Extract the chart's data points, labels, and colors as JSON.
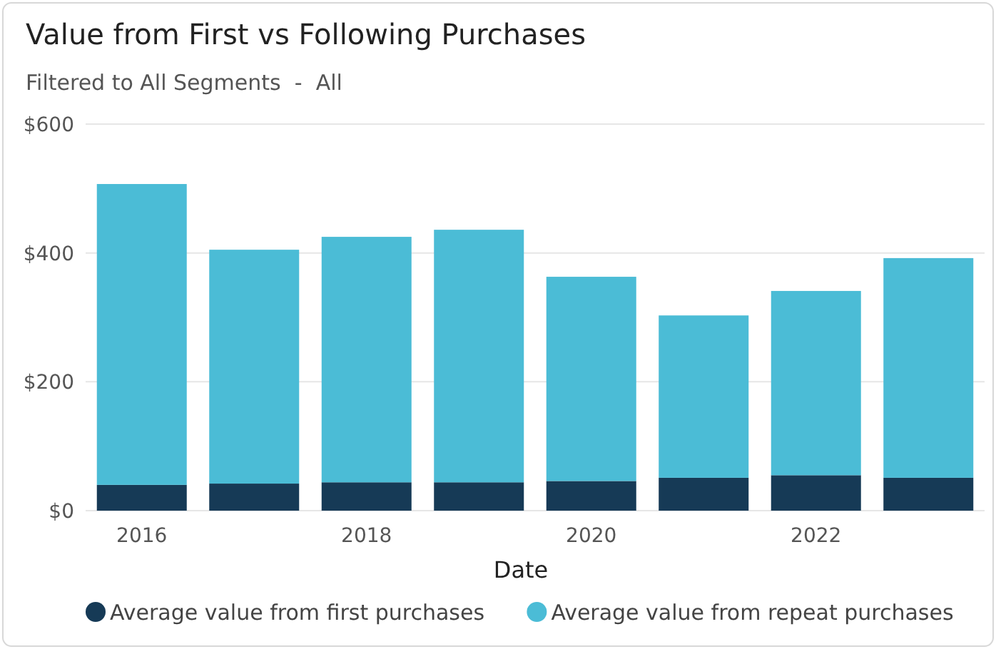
{
  "chart_data": {
    "type": "bar",
    "title": "Value from First vs Following Purchases",
    "subtitle": "Filtered to All Segments  -  All",
    "xlabel": "Date",
    "categories": [
      "2016",
      null,
      "2018",
      null,
      "2020",
      null,
      "2022",
      null
    ],
    "series": [
      {
        "name": "Average value from first purchases",
        "color": "#163a56",
        "values": [
          40,
          42,
          44,
          44,
          46,
          51,
          55,
          51
        ]
      },
      {
        "name": "Average value from repeat purchases",
        "color": "#4bbcd6",
        "values": [
          467,
          363,
          381,
          392,
          317,
          252,
          286,
          341
        ]
      }
    ],
    "stacked": true,
    "ylim": [
      0,
      600
    ],
    "yticks": [
      {
        "value": 0,
        "label": "$0"
      },
      {
        "value": 200,
        "label": "$200"
      },
      {
        "value": 400,
        "label": "$400"
      },
      {
        "value": 600,
        "label": "$600"
      }
    ],
    "grid": "y",
    "legend": "bottom"
  }
}
